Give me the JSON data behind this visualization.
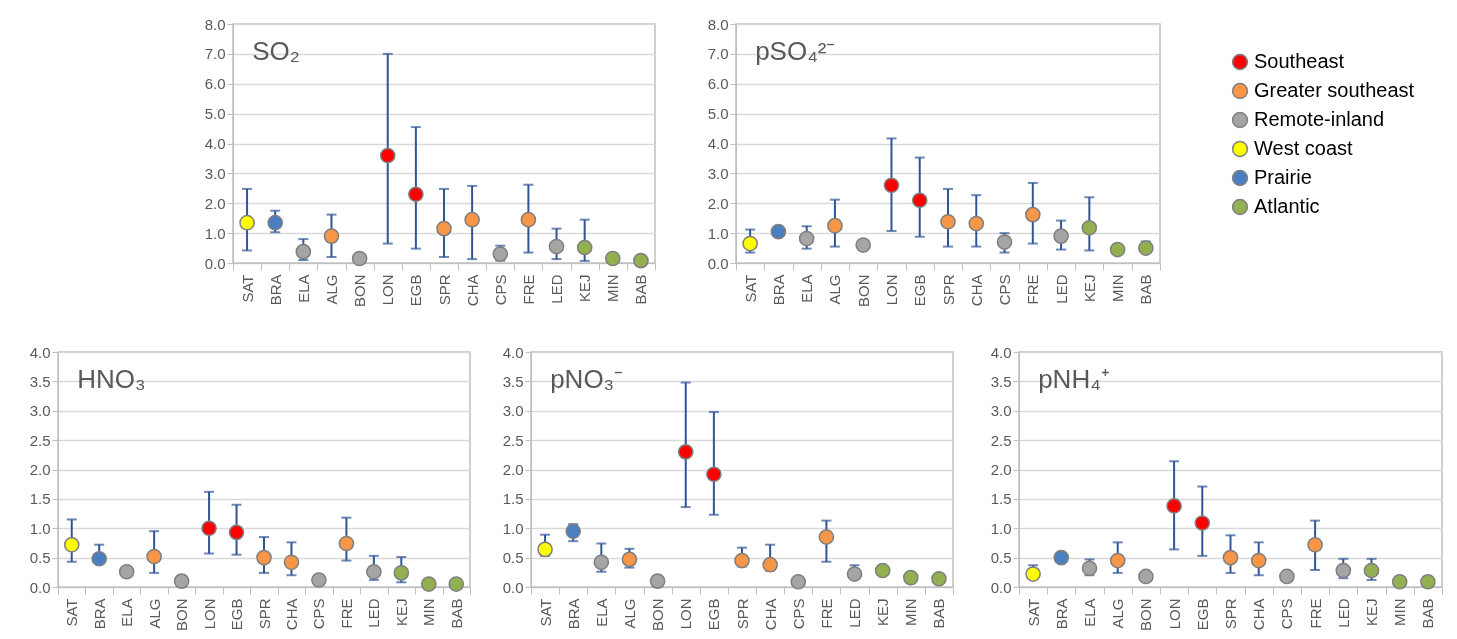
{
  "chart_data": [
    {
      "type": "scatter",
      "title": "SO₂",
      "categories": [
        "SAT",
        "BRA",
        "ELA",
        "ALG",
        "BON",
        "LON",
        "EGB",
        "SPR",
        "CHA",
        "CPS",
        "FRE",
        "LED",
        "KEJ",
        "MIN",
        "BAB"
      ],
      "ylim": [
        0,
        8
      ],
      "yticks": [
        {
          "value": 0,
          "label": "0.0"
        },
        {
          "value": 1,
          "label": "1.0"
        },
        {
          "value": 2,
          "label": "2.0"
        },
        {
          "value": 3,
          "label": "3.0"
        },
        {
          "value": 4,
          "label": "4.0"
        },
        {
          "value": 5,
          "label": "5.0"
        },
        {
          "value": 6,
          "label": "6.0"
        },
        {
          "value": 7,
          "label": "7.0"
        },
        {
          "value": 8,
          "label": "8.0"
        }
      ],
      "grid": "y",
      "marker": "circle",
      "series": [
        {
          "color": "#ff0000",
          "values": [
            null,
            null,
            null,
            null,
            null,
            3.6,
            2.3,
            null,
            null,
            null,
            null,
            null,
            null,
            null,
            null
          ],
          "errors": [
            null,
            null,
            null,
            null,
            null,
            [
              0.65,
              7.0
            ],
            [
              0.48,
              4.55
            ],
            null,
            null,
            null,
            null,
            null,
            null,
            null,
            null
          ]
        },
        {
          "color": "#f79646",
          "values": [
            null,
            null,
            null,
            0.9,
            null,
            null,
            null,
            1.15,
            1.45,
            null,
            1.45,
            null,
            null,
            null,
            null
          ],
          "errors": [
            null,
            null,
            null,
            [
              0.2,
              1.62
            ],
            null,
            null,
            null,
            [
              0.2,
              2.48
            ],
            [
              0.13,
              2.58
            ],
            null,
            [
              0.35,
              2.62
            ],
            null,
            null,
            null,
            null
          ]
        },
        {
          "color": "#a5a5a5",
          "values": [
            null,
            null,
            0.38,
            null,
            0.15,
            null,
            null,
            null,
            null,
            0.3,
            null,
            0.55,
            null,
            null,
            null
          ],
          "errors": [
            null,
            null,
            [
              0.1,
              0.8
            ],
            null,
            null,
            null,
            null,
            null,
            null,
            [
              0.08,
              0.58
            ],
            null,
            [
              0.13,
              1.15
            ],
            null,
            null,
            null
          ]
        },
        {
          "color": "#ffff00",
          "values": [
            1.35,
            null,
            null,
            null,
            null,
            null,
            null,
            null,
            null,
            null,
            null,
            null,
            null,
            null,
            null
          ],
          "errors": [
            [
              0.42,
              2.48
            ],
            null,
            null,
            null,
            null,
            null,
            null,
            null,
            null,
            null,
            null,
            null,
            null,
            null,
            null
          ]
        },
        {
          "color": "#4a7fc1",
          "values": [
            null,
            1.35,
            null,
            null,
            null,
            null,
            null,
            null,
            null,
            null,
            null,
            null,
            null,
            null,
            null
          ],
          "errors": [
            null,
            [
              1.03,
              1.75
            ],
            null,
            null,
            null,
            null,
            null,
            null,
            null,
            null,
            null,
            null,
            null,
            null,
            null
          ]
        },
        {
          "color": "#92b050",
          "values": [
            null,
            null,
            null,
            null,
            null,
            null,
            null,
            null,
            null,
            null,
            null,
            null,
            0.52,
            0.15,
            0.08
          ],
          "errors": [
            null,
            null,
            null,
            null,
            null,
            null,
            null,
            null,
            null,
            null,
            null,
            null,
            [
              0.07,
              1.45
            ],
            null,
            null
          ]
        }
      ]
    },
    {
      "type": "scatter",
      "title": "pSO₄²⁻",
      "categories": [
        "SAT",
        "BRA",
        "ELA",
        "ALG",
        "BON",
        "LON",
        "EGB",
        "SPR",
        "CHA",
        "CPS",
        "FRE",
        "LED",
        "KEJ",
        "MIN",
        "BAB"
      ],
      "ylim": [
        0,
        8
      ],
      "yticks": [
        {
          "value": 0,
          "label": "0.0"
        },
        {
          "value": 1,
          "label": "1.0"
        },
        {
          "value": 2,
          "label": "2.0"
        },
        {
          "value": 3,
          "label": "3.0"
        },
        {
          "value": 4,
          "label": "4.0"
        },
        {
          "value": 5,
          "label": "5.0"
        },
        {
          "value": 6,
          "label": "6.0"
        },
        {
          "value": 7,
          "label": "7.0"
        },
        {
          "value": 8,
          "label": "8.0"
        }
      ],
      "grid": "y",
      "marker": "circle",
      "legend": "right",
      "series": [
        {
          "name": "Southeast",
          "color": "#ff0000",
          "values": [
            null,
            null,
            null,
            null,
            null,
            2.6,
            2.1,
            null,
            null,
            null,
            null,
            null,
            null,
            null,
            null
          ],
          "errors": [
            null,
            null,
            null,
            null,
            null,
            [
              1.07,
              4.17
            ],
            [
              0.88,
              3.53
            ],
            null,
            null,
            null,
            null,
            null,
            null,
            null,
            null
          ]
        },
        {
          "name": "Greater southeast",
          "color": "#f79646",
          "values": [
            null,
            null,
            null,
            1.25,
            null,
            null,
            null,
            1.38,
            1.32,
            null,
            1.62,
            null,
            null,
            null,
            null
          ],
          "errors": [
            null,
            null,
            null,
            [
              0.55,
              2.12
            ],
            null,
            null,
            null,
            [
              0.55,
              2.48
            ],
            [
              0.55,
              2.27
            ],
            null,
            [
              0.65,
              2.68
            ],
            null,
            null,
            null,
            null
          ]
        },
        {
          "name": "Remote-inland",
          "color": "#a5a5a5",
          "values": [
            null,
            null,
            0.82,
            null,
            0.6,
            null,
            null,
            null,
            null,
            0.7,
            null,
            0.9,
            null,
            null,
            null
          ],
          "errors": [
            null,
            null,
            [
              0.48,
              1.23
            ],
            null,
            null,
            null,
            null,
            null,
            null,
            [
              0.35,
              1.0
            ],
            null,
            [
              0.45,
              1.42
            ],
            null,
            null,
            null
          ]
        },
        {
          "name": "West coast",
          "color": "#ffff00",
          "values": [
            0.65,
            null,
            null,
            null,
            null,
            null,
            null,
            null,
            null,
            null,
            null,
            null,
            null,
            null,
            null
          ],
          "errors": [
            [
              0.35,
              1.12
            ],
            null,
            null,
            null,
            null,
            null,
            null,
            null,
            null,
            null,
            null,
            null,
            null,
            null,
            null
          ]
        },
        {
          "name": "Prairie",
          "color": "#4a7fc1",
          "values": [
            null,
            1.05,
            null,
            null,
            null,
            null,
            null,
            null,
            null,
            null,
            null,
            null,
            null,
            null,
            null
          ],
          "errors": [
            null,
            null,
            null,
            null,
            null,
            null,
            null,
            null,
            null,
            null,
            null,
            null,
            null,
            null,
            null
          ]
        },
        {
          "name": "Atlantic",
          "color": "#92b050",
          "values": [
            null,
            null,
            null,
            null,
            null,
            null,
            null,
            null,
            null,
            null,
            null,
            null,
            1.18,
            0.45,
            0.5
          ],
          "errors": [
            null,
            null,
            null,
            null,
            null,
            null,
            null,
            null,
            null,
            null,
            null,
            null,
            [
              0.42,
              2.2
            ],
            null,
            [
              0.45,
              0.72
            ]
          ]
        }
      ]
    },
    {
      "type": "scatter",
      "title": "HNO₃",
      "categories": [
        "SAT",
        "BRA",
        "ELA",
        "ALG",
        "BON",
        "LON",
        "EGB",
        "SPR",
        "CHA",
        "CPS",
        "FRE",
        "LED",
        "KEJ",
        "MIN",
        "BAB"
      ],
      "ylim": [
        0,
        4
      ],
      "yticks": [
        {
          "value": 0,
          "label": "0.0"
        },
        0.5,
        {
          "value": 1,
          "label": "1.0"
        },
        1.5,
        {
          "value": 2,
          "label": "2.0"
        },
        2.5,
        {
          "value": 3,
          "label": "3.0"
        },
        3.5,
        {
          "value": 4,
          "label": "4.0"
        }
      ],
      "grid": "y",
      "marker": "circle",
      "series": [
        {
          "color": "#ff0000",
          "values": [
            null,
            null,
            null,
            null,
            null,
            1.0,
            0.93,
            null,
            null,
            null,
            null,
            null,
            null,
            null,
            null
          ],
          "errors": [
            null,
            null,
            null,
            null,
            null,
            [
              0.57,
              1.62
            ],
            [
              0.55,
              1.4
            ],
            null,
            null,
            null,
            null,
            null,
            null,
            null,
            null
          ]
        },
        {
          "color": "#f79646",
          "values": [
            null,
            null,
            null,
            0.52,
            null,
            null,
            null,
            0.5,
            0.42,
            null,
            0.74,
            null,
            null,
            null,
            null
          ],
          "errors": [
            null,
            null,
            null,
            [
              0.24,
              0.95
            ],
            null,
            null,
            null,
            [
              0.24,
              0.85
            ],
            [
              0.2,
              0.76
            ],
            null,
            [
              0.45,
              1.18
            ],
            null,
            null,
            null,
            null
          ]
        },
        {
          "color": "#a5a5a5",
          "values": [
            null,
            null,
            0.26,
            null,
            0.1,
            null,
            null,
            null,
            null,
            0.12,
            null,
            0.26,
            null,
            null,
            null
          ],
          "errors": [
            null,
            null,
            null,
            null,
            null,
            null,
            null,
            null,
            null,
            null,
            null,
            [
              0.12,
              0.53
            ],
            null,
            null,
            null
          ]
        },
        {
          "color": "#ffff00",
          "values": [
            0.72,
            null,
            null,
            null,
            null,
            null,
            null,
            null,
            null,
            null,
            null,
            null,
            null,
            null,
            null
          ],
          "errors": [
            [
              0.43,
              1.15
            ],
            null,
            null,
            null,
            null,
            null,
            null,
            null,
            null,
            null,
            null,
            null,
            null,
            null,
            null
          ]
        },
        {
          "color": "#4a7fc1",
          "values": [
            null,
            0.48,
            null,
            null,
            null,
            null,
            null,
            null,
            null,
            null,
            null,
            null,
            null,
            null,
            null
          ],
          "errors": [
            null,
            [
              0.48,
              0.72
            ],
            null,
            null,
            null,
            null,
            null,
            null,
            null,
            null,
            null,
            null,
            null,
            null,
            null
          ]
        },
        {
          "color": "#92b050",
          "values": [
            null,
            null,
            null,
            null,
            null,
            null,
            null,
            null,
            null,
            null,
            null,
            null,
            0.24,
            0.05,
            0.05
          ],
          "errors": [
            null,
            null,
            null,
            null,
            null,
            null,
            null,
            null,
            null,
            null,
            null,
            null,
            [
              0.08,
              0.51
            ],
            null,
            null
          ]
        }
      ]
    },
    {
      "type": "scatter",
      "title": "pNO₃⁻",
      "categories": [
        "SAT",
        "BRA",
        "ELA",
        "ALG",
        "BON",
        "LON",
        "EGB",
        "SPR",
        "CHA",
        "CPS",
        "FRE",
        "LED",
        "KEJ",
        "MIN",
        "BAB"
      ],
      "ylim": [
        0,
        4
      ],
      "yticks": [
        {
          "value": 0,
          "label": "0.0"
        },
        0.5,
        {
          "value": 1,
          "label": "1.0"
        },
        1.5,
        {
          "value": 2,
          "label": "2.0"
        },
        2.5,
        {
          "value": 3,
          "label": "3.0"
        },
        3.5,
        {
          "value": 4,
          "label": "4.0"
        }
      ],
      "grid": "y",
      "marker": "circle",
      "series": [
        {
          "color": "#ff0000",
          "values": [
            null,
            null,
            null,
            null,
            null,
            2.3,
            1.92,
            null,
            null,
            null,
            null,
            null,
            null,
            null,
            null
          ],
          "errors": [
            null,
            null,
            null,
            null,
            null,
            [
              1.36,
              3.48
            ],
            [
              1.23,
              2.98
            ],
            null,
            null,
            null,
            null,
            null,
            null,
            null,
            null
          ]
        },
        {
          "color": "#f79646",
          "values": [
            null,
            null,
            null,
            0.47,
            null,
            null,
            null,
            0.45,
            0.38,
            null,
            0.85,
            null,
            null,
            null,
            null
          ],
          "errors": [
            null,
            null,
            null,
            [
              0.33,
              0.65
            ],
            null,
            null,
            null,
            [
              0.35,
              0.67
            ],
            [
              0.28,
              0.72
            ],
            null,
            [
              0.43,
              1.13
            ],
            null,
            null,
            null,
            null
          ]
        },
        {
          "color": "#a5a5a5",
          "values": [
            null,
            null,
            0.42,
            null,
            0.1,
            null,
            null,
            null,
            null,
            0.09,
            null,
            0.22,
            null,
            null,
            null
          ],
          "errors": [
            null,
            null,
            [
              0.26,
              0.74
            ],
            null,
            null,
            null,
            null,
            null,
            null,
            null,
            null,
            [
              0.15,
              0.37
            ],
            null,
            null,
            null
          ]
        },
        {
          "color": "#ffff00",
          "values": [
            0.64,
            null,
            null,
            null,
            null,
            null,
            null,
            null,
            null,
            null,
            null,
            null,
            null,
            null,
            null
          ],
          "errors": [
            [
              0.53,
              0.89
            ],
            null,
            null,
            null,
            null,
            null,
            null,
            null,
            null,
            null,
            null,
            null,
            null,
            null,
            null
          ]
        },
        {
          "color": "#4a7fc1",
          "values": [
            null,
            0.95,
            null,
            null,
            null,
            null,
            null,
            null,
            null,
            null,
            null,
            null,
            null,
            null,
            null
          ],
          "errors": [
            null,
            [
              0.78,
              1.07
            ],
            null,
            null,
            null,
            null,
            null,
            null,
            null,
            null,
            null,
            null,
            null,
            null,
            null
          ]
        },
        {
          "color": "#92b050",
          "values": [
            null,
            null,
            null,
            null,
            null,
            null,
            null,
            null,
            null,
            null,
            null,
            null,
            0.28,
            0.16,
            0.14
          ],
          "errors": [
            null,
            null,
            null,
            null,
            null,
            null,
            null,
            null,
            null,
            null,
            null,
            null,
            null,
            null,
            null
          ]
        }
      ]
    },
    {
      "type": "scatter",
      "title": "pNH₄⁺",
      "categories": [
        "SAT",
        "BRA",
        "ELA",
        "ALG",
        "BON",
        "LON",
        "EGB",
        "SPR",
        "CHA",
        "CPS",
        "FRE",
        "LED",
        "KEJ",
        "MIN",
        "BAB"
      ],
      "ylim": [
        0,
        4
      ],
      "yticks": [
        {
          "value": 0,
          "label": "0.0"
        },
        0.5,
        {
          "value": 1,
          "label": "1.0"
        },
        1.5,
        {
          "value": 2,
          "label": "2.0"
        },
        2.5,
        {
          "value": 3,
          "label": "3.0"
        },
        3.5,
        {
          "value": 4,
          "label": "4.0"
        }
      ],
      "grid": "y",
      "marker": "circle",
      "series": [
        {
          "color": "#ff0000",
          "values": [
            null,
            null,
            null,
            null,
            null,
            1.38,
            1.09,
            null,
            null,
            null,
            null,
            null,
            null,
            null,
            null
          ],
          "errors": [
            null,
            null,
            null,
            null,
            null,
            [
              0.64,
              2.14
            ],
            [
              0.53,
              1.71
            ],
            null,
            null,
            null,
            null,
            null,
            null,
            null,
            null
          ]
        },
        {
          "color": "#f79646",
          "values": [
            null,
            null,
            null,
            0.45,
            null,
            null,
            null,
            0.5,
            0.45,
            null,
            0.72,
            null,
            null,
            null,
            null
          ],
          "errors": [
            null,
            null,
            null,
            [
              0.24,
              0.76
            ],
            null,
            null,
            null,
            [
              0.24,
              0.88
            ],
            [
              0.2,
              0.76
            ],
            null,
            [
              0.29,
              1.13
            ],
            null,
            null,
            null,
            null
          ]
        },
        {
          "color": "#a5a5a5",
          "values": [
            null,
            null,
            0.32,
            null,
            0.18,
            null,
            null,
            null,
            null,
            0.18,
            null,
            0.28,
            null,
            null,
            null
          ],
          "errors": [
            null,
            null,
            [
              0.2,
              0.47
            ],
            null,
            null,
            null,
            null,
            null,
            null,
            null,
            null,
            [
              0.15,
              0.48
            ],
            null,
            null,
            null
          ]
        },
        {
          "color": "#ffff00",
          "values": [
            0.22,
            null,
            null,
            null,
            null,
            null,
            null,
            null,
            null,
            null,
            null,
            null,
            null,
            null,
            null
          ],
          "errors": [
            [
              0.15,
              0.37
            ],
            null,
            null,
            null,
            null,
            null,
            null,
            null,
            null,
            null,
            null,
            null,
            null,
            null,
            null
          ]
        },
        {
          "color": "#4a7fc1",
          "values": [
            null,
            0.5,
            null,
            null,
            null,
            null,
            null,
            null,
            null,
            null,
            null,
            null,
            null,
            null,
            null
          ],
          "errors": [
            null,
            null,
            null,
            null,
            null,
            null,
            null,
            null,
            null,
            null,
            null,
            null,
            null,
            null,
            null
          ]
        },
        {
          "color": "#92b050",
          "values": [
            null,
            null,
            null,
            null,
            null,
            null,
            null,
            null,
            null,
            null,
            null,
            null,
            0.28,
            0.09,
            0.09
          ],
          "errors": [
            null,
            null,
            null,
            null,
            null,
            null,
            null,
            null,
            null,
            null,
            null,
            null,
            [
              0.12,
              0.48
            ],
            null,
            null
          ]
        }
      ]
    }
  ]
}
